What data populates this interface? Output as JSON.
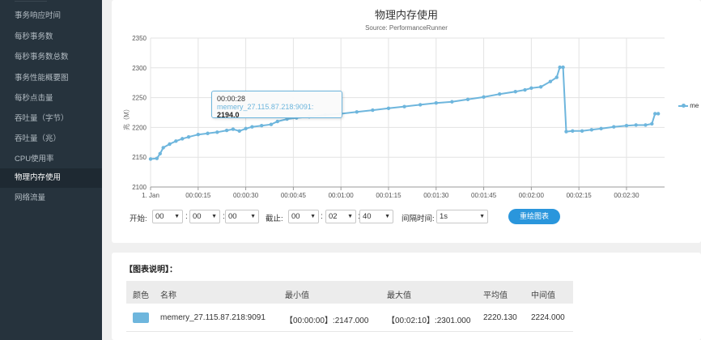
{
  "sidebar": {
    "items": [
      {
        "label": "事务响应时间"
      },
      {
        "label": "每秒事务数"
      },
      {
        "label": "每秒事务数总数"
      },
      {
        "label": "事务性能概要图"
      },
      {
        "label": "每秒点击量"
      },
      {
        "label": "吞吐量（字节）"
      },
      {
        "label": "吞吐量（兆）"
      },
      {
        "label": "CPU使用率"
      },
      {
        "label": "物理内存使用",
        "active": true
      },
      {
        "label": "网络流量"
      }
    ]
  },
  "chart": {
    "title": "物理内存使用",
    "subtitle": "Source: PerformanceRunner",
    "ylabel": "兆（M）",
    "legend_label": "me",
    "tooltip": {
      "time": "00:00:28",
      "series": "memery_27.115.87.218:9091:",
      "value": "2194.0"
    }
  },
  "chart_data": {
    "type": "line",
    "title": "物理内存使用",
    "subtitle": "Source: PerformanceRunner",
    "ylabel": "兆（M）",
    "ylim": [
      2100,
      2350
    ],
    "yticks": [
      2100,
      2150,
      2200,
      2250,
      2300,
      2350
    ],
    "xlim_seconds": [
      0,
      162
    ],
    "xticks": [
      {
        "t": 0,
        "label": "1. Jan"
      },
      {
        "t": 15,
        "label": "00:00:15"
      },
      {
        "t": 30,
        "label": "00:00:30"
      },
      {
        "t": 45,
        "label": "00:00:45"
      },
      {
        "t": 60,
        "label": "00:01:00"
      },
      {
        "t": 75,
        "label": "00:01:15"
      },
      {
        "t": 90,
        "label": "00:01:30"
      },
      {
        "t": 105,
        "label": "00:01:45"
      },
      {
        "t": 120,
        "label": "00:02:00"
      },
      {
        "t": 135,
        "label": "00:02:15"
      },
      {
        "t": 150,
        "label": "00:02:30"
      }
    ],
    "grid": true,
    "legend_position": "right",
    "series": [
      {
        "name": "memery_27.115.87.218:9091",
        "color": "#6eb6dd",
        "points": [
          [
            0,
            2147
          ],
          [
            2,
            2148
          ],
          [
            3,
            2156
          ],
          [
            4,
            2166
          ],
          [
            6,
            2172
          ],
          [
            8,
            2177
          ],
          [
            10,
            2181
          ],
          [
            12,
            2184
          ],
          [
            15,
            2188
          ],
          [
            18,
            2190
          ],
          [
            21,
            2192
          ],
          [
            24,
            2195
          ],
          [
            26,
            2197
          ],
          [
            28,
            2194
          ],
          [
            30,
            2198
          ],
          [
            32,
            2201
          ],
          [
            35,
            2203
          ],
          [
            38,
            2205
          ],
          [
            40,
            2210
          ],
          [
            43,
            2214
          ],
          [
            46,
            2216
          ],
          [
            50,
            2218
          ],
          [
            55,
            2221
          ],
          [
            60,
            2223
          ],
          [
            65,
            2226
          ],
          [
            70,
            2229
          ],
          [
            75,
            2232
          ],
          [
            80,
            2235
          ],
          [
            85,
            2238
          ],
          [
            90,
            2241
          ],
          [
            95,
            2243
          ],
          [
            100,
            2247
          ],
          [
            105,
            2251
          ],
          [
            110,
            2256
          ],
          [
            115,
            2260
          ],
          [
            118,
            2263
          ],
          [
            120,
            2266
          ],
          [
            123,
            2268
          ],
          [
            126,
            2277
          ],
          [
            128,
            2284
          ],
          [
            129,
            2301
          ],
          [
            130,
            2301
          ],
          [
            131,
            2193
          ],
          [
            133,
            2194
          ],
          [
            136,
            2194
          ],
          [
            139,
            2196
          ],
          [
            142,
            2198
          ],
          [
            146,
            2201
          ],
          [
            150,
            2203
          ],
          [
            153,
            2204
          ],
          [
            156,
            2204
          ],
          [
            158,
            2206
          ],
          [
            159,
            2223
          ],
          [
            160,
            2223
          ]
        ]
      }
    ]
  },
  "controls": {
    "start_label": "开始:",
    "start_hh": "00",
    "start_mm": "00",
    "start_ss": "00",
    "end_label": "截止:",
    "end_hh": "00",
    "end_mm": "02",
    "end_ss": "40",
    "interval_label": "间隔时间:",
    "interval_value": "1s",
    "colon": ":",
    "redraw_button": "重绘图表"
  },
  "legend_table": {
    "heading": "【图表说明】：",
    "headers": {
      "color": "颜色",
      "name": "名称",
      "min": "最小值",
      "max": "最大值",
      "avg": "平均值",
      "median": "中间值"
    },
    "rows": [
      {
        "color": "#6eb6dd",
        "name": "memery_27.115.87.218:9091",
        "min": "【00:00:00】:2147.000",
        "max": "【00:02:10】:2301.000",
        "avg": "2220.130",
        "median": "2224.000"
      }
    ]
  }
}
